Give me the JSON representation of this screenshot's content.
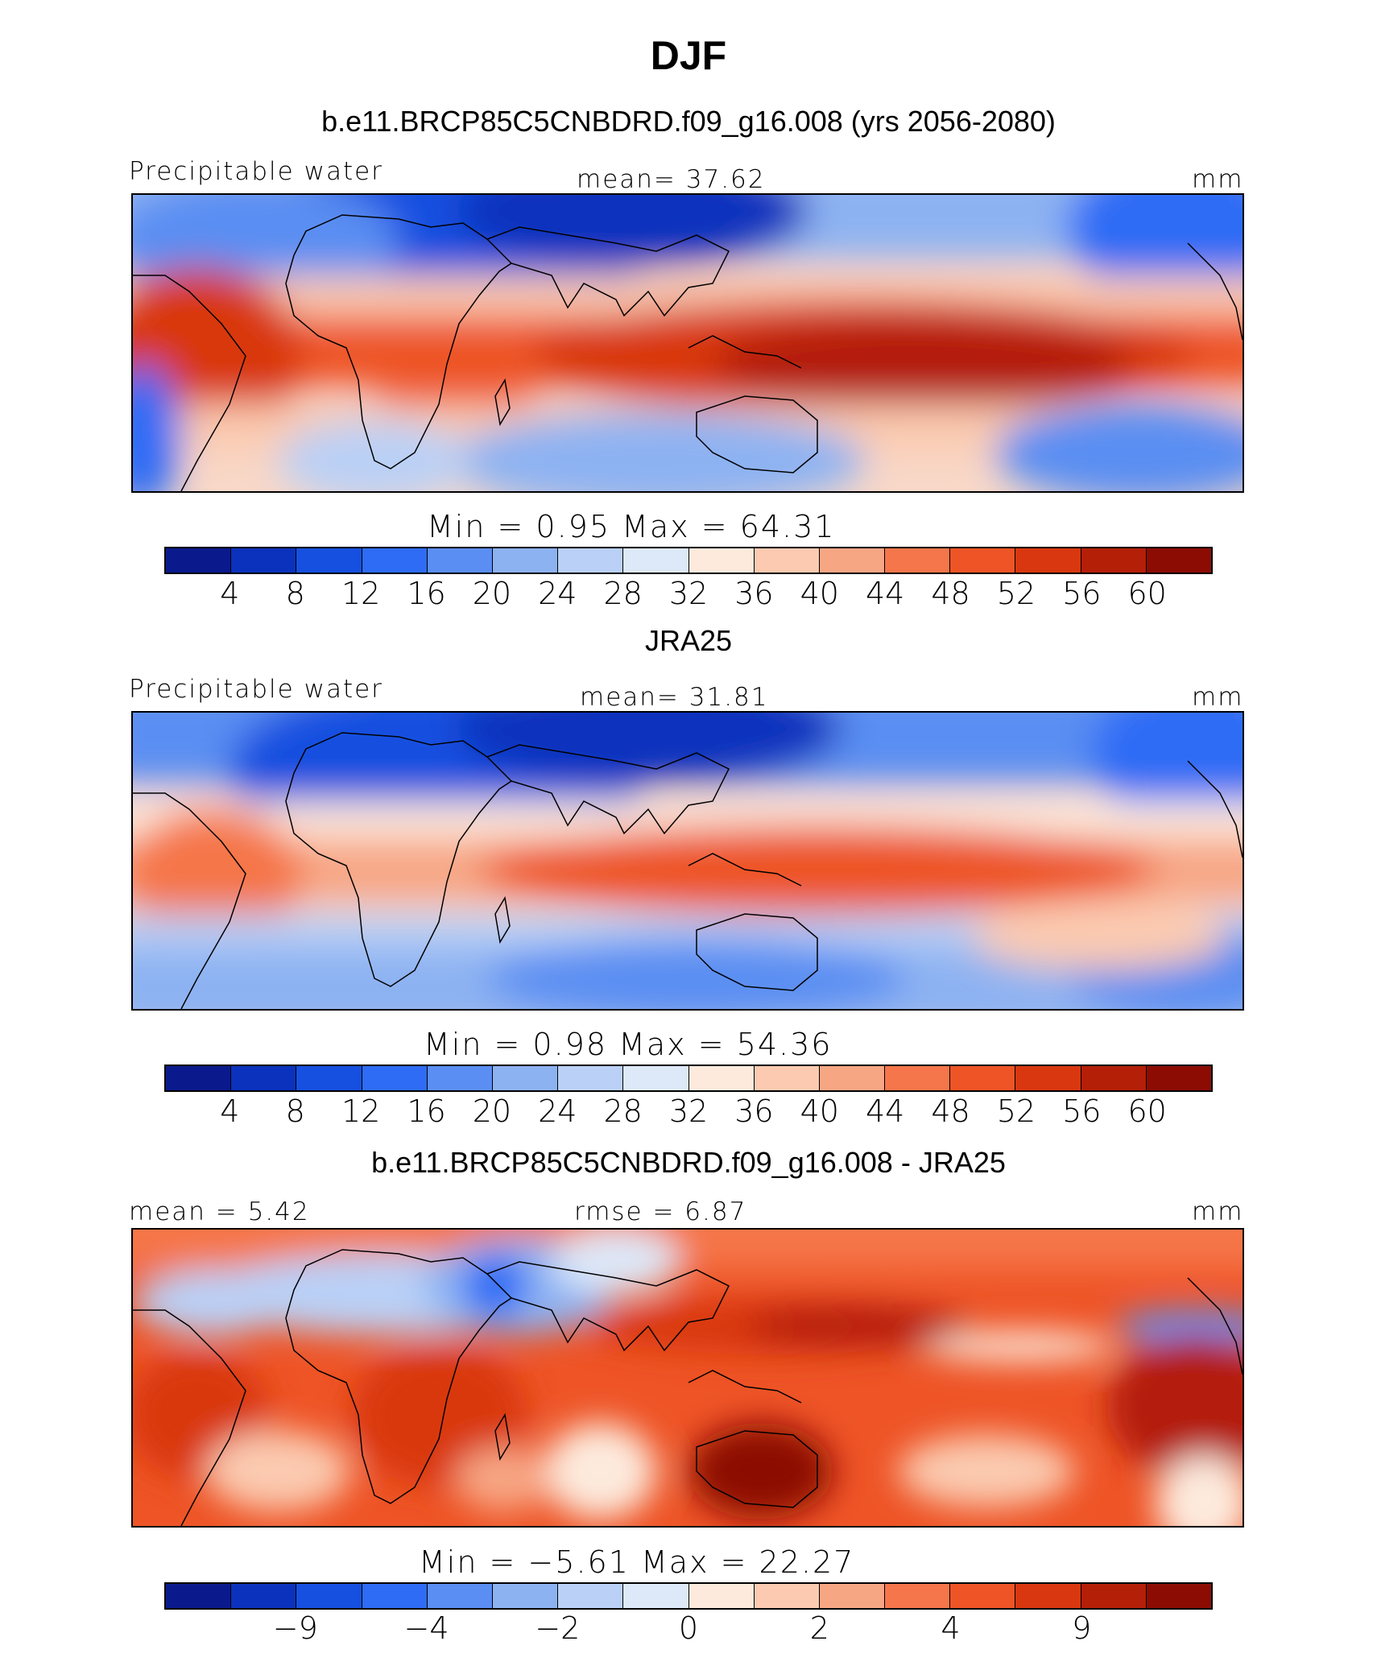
{
  "figure": {
    "title": "DJF"
  },
  "colors": [
    "#0a1a8c",
    "#0a32bd",
    "#1550e0",
    "#2e6cf5",
    "#5a8ef2",
    "#8db2f2",
    "#bad0f6",
    "#dde8f8",
    "#fdeadd",
    "#fbcab0",
    "#f7a684",
    "#f5764a",
    "#ee5426",
    "#d9370f",
    "#b41f08",
    "#8c0c04"
  ],
  "panels": [
    {
      "title": "b.e11.BRCP85C5CNBDRD.f09_g16.008 (yrs 2056-2080)",
      "left_label": "Precipitable water",
      "center_label": "mean=   37.62",
      "units": "mm",
      "minmax": "Min =     0.95  Max =    64.31",
      "ticks": [
        "4",
        "8",
        "12",
        "16",
        "20",
        "24",
        "28",
        "32",
        "36",
        "40",
        "44",
        "48",
        "52",
        "56",
        "60"
      ]
    },
    {
      "title": "JRA25",
      "left_label": "Precipitable water",
      "center_label": "mean=   31.81",
      "units": "mm",
      "minmax": "Min =     0.98  Max =    54.36",
      "ticks": [
        "4",
        "8",
        "12",
        "16",
        "20",
        "24",
        "28",
        "32",
        "36",
        "40",
        "44",
        "48",
        "52",
        "56",
        "60"
      ]
    },
    {
      "title": "b.e11.BRCP85C5CNBDRD.f09_g16.008 - JRA25",
      "left_label": "mean =    5.42",
      "center_label": "rmse =     6.87",
      "units": "mm",
      "minmax": "Min =   −5.61  Max =    22.27",
      "ticks": [
        "−9",
        "−4",
        "−2",
        "0",
        "2",
        "4",
        "9"
      ]
    }
  ]
}
